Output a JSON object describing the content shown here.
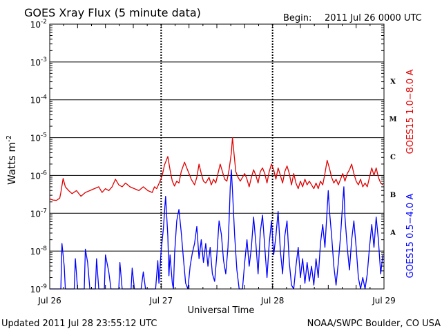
{
  "header": {
    "title": "GOES Xray Flux (5 minute data)",
    "begin_label": "Begin:",
    "begin_value": "2011 Jul 26 0000 UTC"
  },
  "footer": {
    "updated": "Updated 2011 Jul 28 23:55:12 UTC",
    "source": "NOAA/SWPC Boulder, CO USA"
  },
  "colors": {
    "long_channel": "#e00000",
    "short_channel": "#0000ff",
    "grid": "#000000"
  },
  "chart_data": {
    "type": "line",
    "title": "GOES Xray Flux (5 minute data)",
    "xlabel": "Universal Time",
    "ylabel": "Watts m",
    "ylabel_exponent": "-2",
    "yscale": "log",
    "ylim": [
      1e-09,
      0.01
    ],
    "xlim": [
      0,
      3
    ],
    "x_unit": "days since 2011 Jul 26 0000 UTC",
    "x_ticks": [
      {
        "x": 0,
        "label": "Jul 26"
      },
      {
        "x": 1,
        "label": "Jul 27"
      },
      {
        "x": 2,
        "label": "Jul 28"
      },
      {
        "x": 3,
        "label": "Jul 29"
      }
    ],
    "y_ticks": [
      {
        "exp": -9,
        "label": "10",
        "sup": "-9"
      },
      {
        "exp": -8,
        "label": "10",
        "sup": "-8"
      },
      {
        "exp": -7,
        "label": "10",
        "sup": "-7"
      },
      {
        "exp": -6,
        "label": "10",
        "sup": "-6"
      },
      {
        "exp": -5,
        "label": "10",
        "sup": "-5"
      },
      {
        "exp": -4,
        "label": "10",
        "sup": "-4"
      },
      {
        "exp": -3,
        "label": "10",
        "sup": "-3"
      },
      {
        "exp": -2,
        "label": "10",
        "sup": "-2"
      }
    ],
    "flare_classes": [
      {
        "label": "X",
        "exp": -3.5
      },
      {
        "label": "M",
        "exp": -4.5
      },
      {
        "label": "C",
        "exp": -5.5
      },
      {
        "label": "B",
        "exp": -6.5
      },
      {
        "label": "A",
        "exp": -7.5
      }
    ],
    "grid": true,
    "series": [
      {
        "name": "GOES15 1.0−8.0 A",
        "color": "#e00000",
        "points": [
          [
            0.0,
            -6.62
          ],
          [
            0.03,
            -6.65
          ],
          [
            0.06,
            -6.66
          ],
          [
            0.09,
            -6.6
          ],
          [
            0.1,
            -6.45
          ],
          [
            0.12,
            -6.08
          ],
          [
            0.14,
            -6.3
          ],
          [
            0.17,
            -6.4
          ],
          [
            0.2,
            -6.48
          ],
          [
            0.24,
            -6.4
          ],
          [
            0.28,
            -6.55
          ],
          [
            0.32,
            -6.45
          ],
          [
            0.36,
            -6.4
          ],
          [
            0.4,
            -6.35
          ],
          [
            0.44,
            -6.3
          ],
          [
            0.47,
            -6.45
          ],
          [
            0.5,
            -6.35
          ],
          [
            0.53,
            -6.4
          ],
          [
            0.56,
            -6.3
          ],
          [
            0.59,
            -6.1
          ],
          [
            0.62,
            -6.25
          ],
          [
            0.65,
            -6.3
          ],
          [
            0.68,
            -6.2
          ],
          [
            0.72,
            -6.3
          ],
          [
            0.76,
            -6.35
          ],
          [
            0.8,
            -6.4
          ],
          [
            0.84,
            -6.3
          ],
          [
            0.88,
            -6.4
          ],
          [
            0.92,
            -6.45
          ],
          [
            0.94,
            -6.3
          ],
          [
            0.96,
            -6.35
          ],
          [
            0.99,
            -6.15
          ],
          [
            1.01,
            -6.0
          ],
          [
            1.03,
            -5.72
          ],
          [
            1.06,
            -5.5
          ],
          [
            1.08,
            -5.85
          ],
          [
            1.1,
            -6.15
          ],
          [
            1.12,
            -6.28
          ],
          [
            1.14,
            -6.15
          ],
          [
            1.16,
            -6.2
          ],
          [
            1.18,
            -5.9
          ],
          [
            1.21,
            -5.65
          ],
          [
            1.23,
            -5.8
          ],
          [
            1.25,
            -5.95
          ],
          [
            1.27,
            -6.1
          ],
          [
            1.3,
            -6.25
          ],
          [
            1.32,
            -6.05
          ],
          [
            1.34,
            -5.7
          ],
          [
            1.36,
            -5.95
          ],
          [
            1.38,
            -6.15
          ],
          [
            1.4,
            -6.2
          ],
          [
            1.43,
            -6.05
          ],
          [
            1.45,
            -6.25
          ],
          [
            1.47,
            -6.1
          ],
          [
            1.49,
            -6.2
          ],
          [
            1.51,
            -5.95
          ],
          [
            1.53,
            -5.7
          ],
          [
            1.55,
            -5.9
          ],
          [
            1.57,
            -6.1
          ],
          [
            1.59,
            -6.15
          ],
          [
            1.61,
            -5.85
          ],
          [
            1.63,
            -5.4
          ],
          [
            1.64,
            -5.0
          ],
          [
            1.65,
            -5.3
          ],
          [
            1.67,
            -5.9
          ],
          [
            1.69,
            -6.05
          ],
          [
            1.71,
            -6.15
          ],
          [
            1.73,
            -6.05
          ],
          [
            1.75,
            -5.95
          ],
          [
            1.77,
            -6.1
          ],
          [
            1.79,
            -6.3
          ],
          [
            1.81,
            -6.05
          ],
          [
            1.83,
            -5.85
          ],
          [
            1.85,
            -6.0
          ],
          [
            1.87,
            -6.2
          ],
          [
            1.89,
            -5.9
          ],
          [
            1.91,
            -5.8
          ],
          [
            1.93,
            -5.95
          ],
          [
            1.95,
            -6.2
          ],
          [
            1.97,
            -5.9
          ],
          [
            1.99,
            -5.7
          ],
          [
            2.01,
            -5.85
          ],
          [
            2.03,
            -6.1
          ],
          [
            2.05,
            -5.8
          ],
          [
            2.07,
            -6.0
          ],
          [
            2.09,
            -6.2
          ],
          [
            2.11,
            -5.9
          ],
          [
            2.13,
            -5.75
          ],
          [
            2.15,
            -5.95
          ],
          [
            2.17,
            -6.25
          ],
          [
            2.19,
            -5.95
          ],
          [
            2.21,
            -6.2
          ],
          [
            2.23,
            -6.35
          ],
          [
            2.25,
            -6.15
          ],
          [
            2.27,
            -6.3
          ],
          [
            2.29,
            -6.1
          ],
          [
            2.31,
            -6.25
          ],
          [
            2.33,
            -6.15
          ],
          [
            2.35,
            -6.25
          ],
          [
            2.37,
            -6.35
          ],
          [
            2.39,
            -6.2
          ],
          [
            2.41,
            -6.35
          ],
          [
            2.43,
            -6.15
          ],
          [
            2.45,
            -6.25
          ],
          [
            2.47,
            -5.95
          ],
          [
            2.49,
            -5.6
          ],
          [
            2.51,
            -5.8
          ],
          [
            2.53,
            -6.05
          ],
          [
            2.55,
            -6.2
          ],
          [
            2.57,
            -6.1
          ],
          [
            2.59,
            -6.25
          ],
          [
            2.61,
            -6.1
          ],
          [
            2.63,
            -5.95
          ],
          [
            2.65,
            -6.15
          ],
          [
            2.67,
            -5.95
          ],
          [
            2.69,
            -5.85
          ],
          [
            2.71,
            -5.7
          ],
          [
            2.73,
            -5.95
          ],
          [
            2.75,
            -6.15
          ],
          [
            2.77,
            -6.25
          ],
          [
            2.79,
            -6.1
          ],
          [
            2.81,
            -6.3
          ],
          [
            2.83,
            -6.2
          ],
          [
            2.85,
            -6.3
          ],
          [
            2.87,
            -6.05
          ],
          [
            2.89,
            -5.8
          ],
          [
            2.91,
            -6.0
          ],
          [
            2.93,
            -5.8
          ],
          [
            2.95,
            -6.05
          ],
          [
            2.97,
            -6.2
          ],
          [
            2.99,
            -6.25
          ]
        ]
      },
      {
        "name": "GOES15 0.5−4.0 A",
        "color": "#0000ff",
        "points": [
          [
            0.0,
            -9.0
          ],
          [
            0.1,
            -9.0
          ],
          [
            0.11,
            -7.8
          ],
          [
            0.13,
            -8.4
          ],
          [
            0.14,
            -9.0
          ],
          [
            0.22,
            -9.0
          ],
          [
            0.23,
            -8.2
          ],
          [
            0.25,
            -9.0
          ],
          [
            0.31,
            -9.0
          ],
          [
            0.32,
            -7.95
          ],
          [
            0.34,
            -8.3
          ],
          [
            0.36,
            -9.0
          ],
          [
            0.41,
            -9.0
          ],
          [
            0.42,
            -8.2
          ],
          [
            0.44,
            -9.0
          ],
          [
            0.49,
            -9.0
          ],
          [
            0.5,
            -8.1
          ],
          [
            0.53,
            -8.55
          ],
          [
            0.55,
            -9.0
          ],
          [
            0.62,
            -9.0
          ],
          [
            0.63,
            -8.3
          ],
          [
            0.65,
            -9.0
          ],
          [
            0.73,
            -9.0
          ],
          [
            0.74,
            -8.45
          ],
          [
            0.76,
            -9.0
          ],
          [
            0.82,
            -9.0
          ],
          [
            0.84,
            -8.55
          ],
          [
            0.86,
            -9.0
          ],
          [
            0.95,
            -9.0
          ],
          [
            0.97,
            -8.25
          ],
          [
            0.98,
            -8.85
          ],
          [
            1.0,
            -8.0
          ],
          [
            1.02,
            -7.4
          ],
          [
            1.04,
            -6.55
          ],
          [
            1.06,
            -7.6
          ],
          [
            1.07,
            -8.65
          ],
          [
            1.08,
            -8.1
          ],
          [
            1.1,
            -8.85
          ],
          [
            1.11,
            -9.0
          ],
          [
            1.12,
            -8.1
          ],
          [
            1.14,
            -7.2
          ],
          [
            1.16,
            -6.9
          ],
          [
            1.18,
            -7.5
          ],
          [
            1.2,
            -8.2
          ],
          [
            1.22,
            -8.85
          ],
          [
            1.24,
            -9.0
          ],
          [
            1.26,
            -8.4
          ],
          [
            1.28,
            -8.05
          ],
          [
            1.3,
            -7.8
          ],
          [
            1.32,
            -7.35
          ],
          [
            1.34,
            -8.2
          ],
          [
            1.36,
            -7.7
          ],
          [
            1.38,
            -8.3
          ],
          [
            1.4,
            -7.8
          ],
          [
            1.42,
            -8.4
          ],
          [
            1.44,
            -7.9
          ],
          [
            1.46,
            -8.6
          ],
          [
            1.48,
            -8.8
          ],
          [
            1.5,
            -8.1
          ],
          [
            1.52,
            -7.2
          ],
          [
            1.54,
            -7.55
          ],
          [
            1.56,
            -8.25
          ],
          [
            1.58,
            -8.6
          ],
          [
            1.6,
            -7.9
          ],
          [
            1.61,
            -7.2
          ],
          [
            1.62,
            -6.3
          ],
          [
            1.63,
            -5.85
          ],
          [
            1.64,
            -6.4
          ],
          [
            1.66,
            -7.6
          ],
          [
            1.68,
            -8.5
          ],
          [
            1.7,
            -9.0
          ],
          [
            1.73,
            -9.0
          ],
          [
            1.75,
            -8.3
          ],
          [
            1.77,
            -7.7
          ],
          [
            1.79,
            -8.4
          ],
          [
            1.81,
            -7.9
          ],
          [
            1.83,
            -7.1
          ],
          [
            1.85,
            -7.8
          ],
          [
            1.87,
            -8.6
          ],
          [
            1.89,
            -7.5
          ],
          [
            1.91,
            -7.05
          ],
          [
            1.93,
            -7.9
          ],
          [
            1.95,
            -8.7
          ],
          [
            1.97,
            -7.8
          ],
          [
            1.99,
            -7.2
          ],
          [
            2.01,
            -8.1
          ],
          [
            2.03,
            -7.6
          ],
          [
            2.05,
            -6.95
          ],
          [
            2.07,
            -8.0
          ],
          [
            2.09,
            -8.6
          ],
          [
            2.11,
            -7.6
          ],
          [
            2.13,
            -7.2
          ],
          [
            2.15,
            -8.3
          ],
          [
            2.17,
            -8.9
          ],
          [
            2.19,
            -9.0
          ],
          [
            2.21,
            -8.4
          ],
          [
            2.23,
            -7.9
          ],
          [
            2.25,
            -8.7
          ],
          [
            2.27,
            -8.2
          ],
          [
            2.29,
            -8.85
          ],
          [
            2.31,
            -8.3
          ],
          [
            2.33,
            -8.8
          ],
          [
            2.35,
            -8.4
          ],
          [
            2.37,
            -8.9
          ],
          [
            2.39,
            -8.2
          ],
          [
            2.41,
            -8.7
          ],
          [
            2.43,
            -7.8
          ],
          [
            2.45,
            -7.3
          ],
          [
            2.47,
            -7.9
          ],
          [
            2.49,
            -6.9
          ],
          [
            2.5,
            -6.4
          ],
          [
            2.51,
            -6.9
          ],
          [
            2.53,
            -7.6
          ],
          [
            2.55,
            -8.4
          ],
          [
            2.57,
            -8.9
          ],
          [
            2.59,
            -8.3
          ],
          [
            2.61,
            -7.6
          ],
          [
            2.63,
            -6.7
          ],
          [
            2.64,
            -6.3
          ],
          [
            2.65,
            -7.1
          ],
          [
            2.67,
            -7.9
          ],
          [
            2.69,
            -8.5
          ],
          [
            2.71,
            -7.7
          ],
          [
            2.73,
            -7.2
          ],
          [
            2.75,
            -7.9
          ],
          [
            2.77,
            -8.7
          ],
          [
            2.79,
            -9.0
          ],
          [
            2.81,
            -8.7
          ],
          [
            2.83,
            -9.0
          ],
          [
            2.85,
            -8.6
          ],
          [
            2.87,
            -7.9
          ],
          [
            2.89,
            -7.3
          ],
          [
            2.91,
            -7.9
          ],
          [
            2.93,
            -7.1
          ],
          [
            2.95,
            -7.7
          ],
          [
            2.97,
            -8.6
          ],
          [
            2.99,
            -8.1
          ]
        ]
      }
    ]
  }
}
